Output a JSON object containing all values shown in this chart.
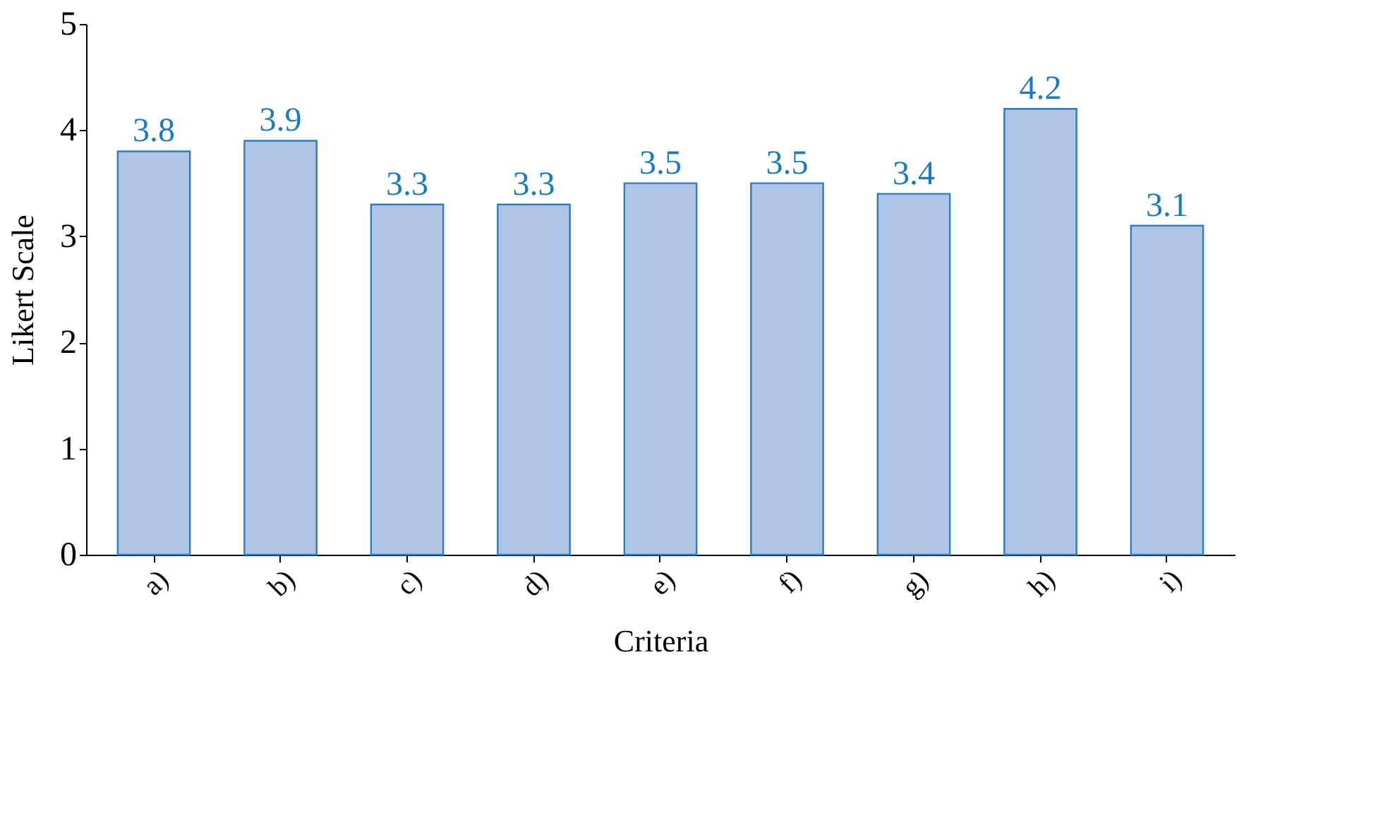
{
  "chart_data": {
    "type": "bar",
    "xlabel": "Criteria",
    "ylabel": "Likert Scale",
    "categories": [
      "a)",
      "b)",
      "c)",
      "d)",
      "e)",
      "f)",
      "g)",
      "h)",
      "i)"
    ],
    "values": [
      3.8,
      3.9,
      3.3,
      3.3,
      3.5,
      3.5,
      3.4,
      4.2,
      3.1
    ],
    "color": "#aec5e5",
    "ylim": [
      0,
      5
    ],
    "yticks": [
      0,
      1,
      2,
      3,
      4,
      5
    ],
    "data_labels": true,
    "grid": false
  }
}
